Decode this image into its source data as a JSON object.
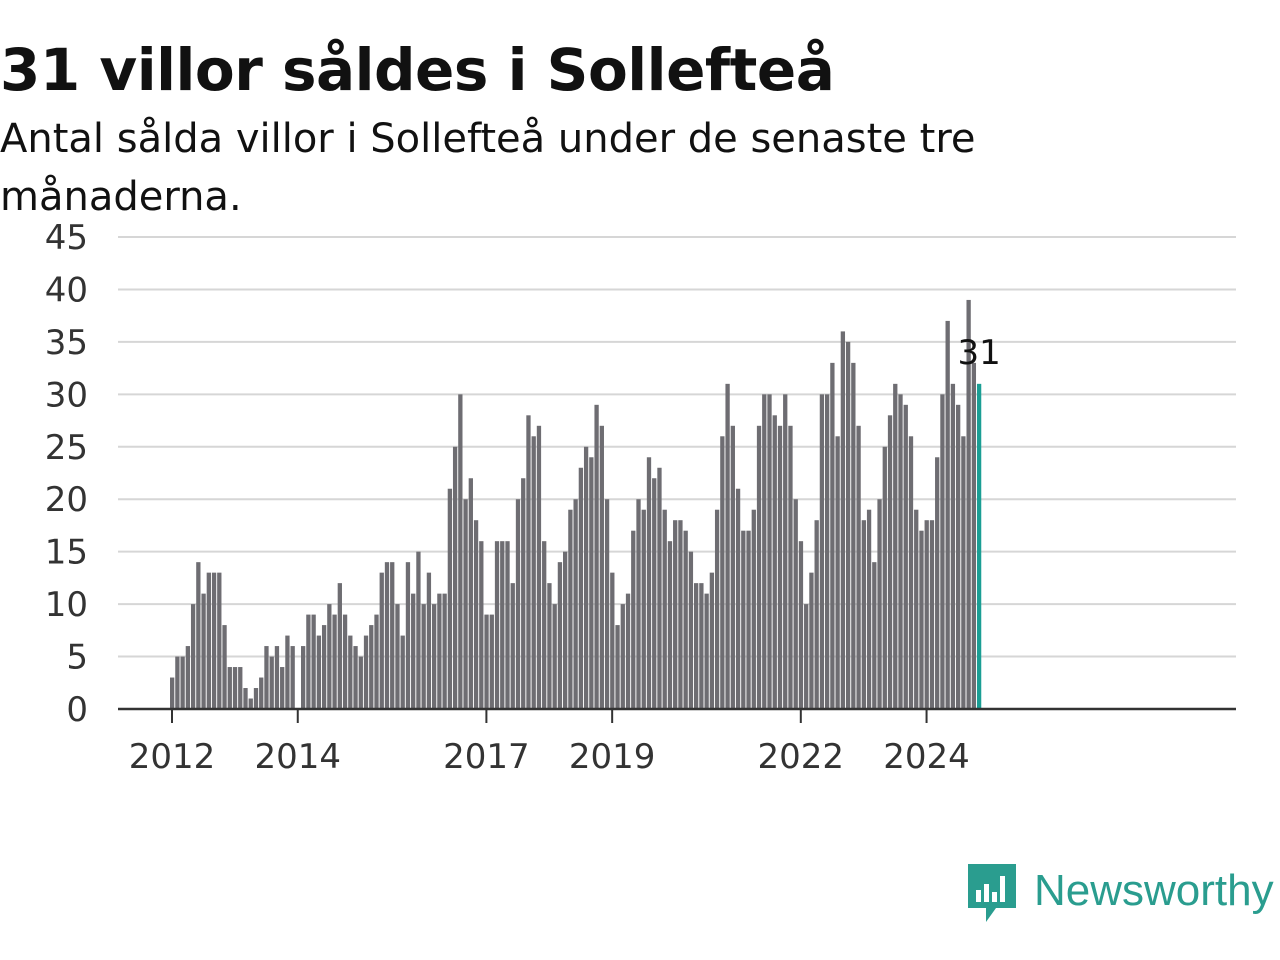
{
  "colors": {
    "bar": "#6e6d72",
    "highlight": "#1a9e94",
    "grid": "#d6d6d6",
    "axis": "#333333",
    "brand": "#2a9d8f"
  },
  "chart_data": {
    "type": "bar",
    "title": "31 villor såldes i Sollefteå",
    "subtitle": "Antal sålda villor i Sollefteå under de senaste tre månaderna.",
    "xlabel": "",
    "ylabel": "",
    "ylim": [
      0,
      45
    ],
    "yticks": [
      0,
      5,
      10,
      15,
      20,
      25,
      30,
      35,
      40,
      45
    ],
    "xticks": [
      "2012",
      "2014",
      "2017",
      "2019",
      "2022",
      "2024"
    ],
    "grid": true,
    "highlight_label": "31",
    "x": [
      "2012-01",
      "2012-02",
      "2012-03",
      "2012-04",
      "2012-05",
      "2012-06",
      "2012-07",
      "2012-08",
      "2012-09",
      "2012-10",
      "2012-11",
      "2012-12",
      "2013-01",
      "2013-02",
      "2013-03",
      "2013-04",
      "2013-05",
      "2013-06",
      "2013-07",
      "2013-08",
      "2013-09",
      "2013-10",
      "2013-11",
      "2013-12",
      "2014-01",
      "2014-02",
      "2014-03",
      "2014-04",
      "2014-05",
      "2014-06",
      "2014-07",
      "2014-08",
      "2014-09",
      "2014-10",
      "2014-11",
      "2014-12",
      "2015-01",
      "2015-02",
      "2015-03",
      "2015-04",
      "2015-05",
      "2015-06",
      "2015-07",
      "2015-08",
      "2015-09",
      "2015-10",
      "2015-11",
      "2015-12",
      "2016-01",
      "2016-02",
      "2016-03",
      "2016-04",
      "2016-05",
      "2016-06",
      "2016-07",
      "2016-08",
      "2016-09",
      "2016-10",
      "2016-11",
      "2016-12",
      "2017-01",
      "2017-02",
      "2017-03",
      "2017-04",
      "2017-05",
      "2017-06",
      "2017-07",
      "2017-08",
      "2017-09",
      "2017-10",
      "2017-11",
      "2017-12",
      "2018-01",
      "2018-02",
      "2018-03",
      "2018-04",
      "2018-05",
      "2018-06",
      "2018-07",
      "2018-08",
      "2018-09",
      "2018-10",
      "2018-11",
      "2018-12",
      "2019-01",
      "2019-02",
      "2019-03",
      "2019-04",
      "2019-05",
      "2019-06",
      "2019-07",
      "2019-08",
      "2019-09",
      "2019-10",
      "2019-11",
      "2019-12",
      "2020-01",
      "2020-02",
      "2020-03",
      "2020-04",
      "2020-05",
      "2020-06",
      "2020-07",
      "2020-08",
      "2020-09",
      "2020-10",
      "2020-11",
      "2020-12",
      "2021-01",
      "2021-02",
      "2021-03",
      "2021-04",
      "2021-05",
      "2021-06",
      "2021-07",
      "2021-08",
      "2021-09",
      "2021-10",
      "2021-11",
      "2021-12",
      "2022-01",
      "2022-02",
      "2022-03",
      "2022-04",
      "2022-05",
      "2022-06",
      "2022-07",
      "2022-08",
      "2022-09",
      "2022-10",
      "2022-11",
      "2022-12",
      "2023-01",
      "2023-02",
      "2023-03",
      "2023-04",
      "2023-05",
      "2023-06",
      "2023-07",
      "2023-08",
      "2023-09",
      "2023-10",
      "2023-11",
      "2023-12",
      "2024-01",
      "2024-02",
      "2024-03",
      "2024-04",
      "2024-05",
      "2024-06",
      "2024-07",
      "2024-08",
      "2024-09",
      "2024-10",
      "2024-11"
    ],
    "values": [
      3,
      5,
      5,
      6,
      10,
      14,
      11,
      13,
      13,
      13,
      8,
      4,
      4,
      4,
      2,
      1,
      2,
      3,
      6,
      5,
      6,
      4,
      7,
      6,
      0,
      6,
      9,
      9,
      7,
      8,
      10,
      9,
      12,
      9,
      7,
      6,
      5,
      7,
      8,
      9,
      13,
      14,
      14,
      10,
      7,
      14,
      11,
      15,
      10,
      13,
      10,
      11,
      11,
      21,
      25,
      30,
      20,
      22,
      18,
      16,
      9,
      9,
      16,
      16,
      16,
      12,
      20,
      22,
      28,
      26,
      27,
      16,
      12,
      10,
      14,
      15,
      19,
      20,
      23,
      25,
      24,
      29,
      27,
      20,
      13,
      8,
      10,
      11,
      17,
      20,
      19,
      24,
      22,
      23,
      19,
      16,
      18,
      18,
      17,
      15,
      12,
      12,
      11,
      13,
      19,
      26,
      31,
      27,
      21,
      17,
      17,
      19,
      27,
      30,
      30,
      28,
      27,
      30,
      27,
      20,
      16,
      10,
      13,
      18,
      30,
      30,
      33,
      26,
      36,
      35,
      33,
      27,
      18,
      19,
      14,
      20,
      25,
      28,
      31,
      30,
      29,
      26,
      19,
      17,
      18,
      18,
      24,
      30,
      37,
      31,
      29,
      26,
      39,
      33,
      31
    ],
    "series": [
      {
        "values_ref": "values"
      }
    ]
  },
  "brand": {
    "name": "Newsworthy"
  }
}
